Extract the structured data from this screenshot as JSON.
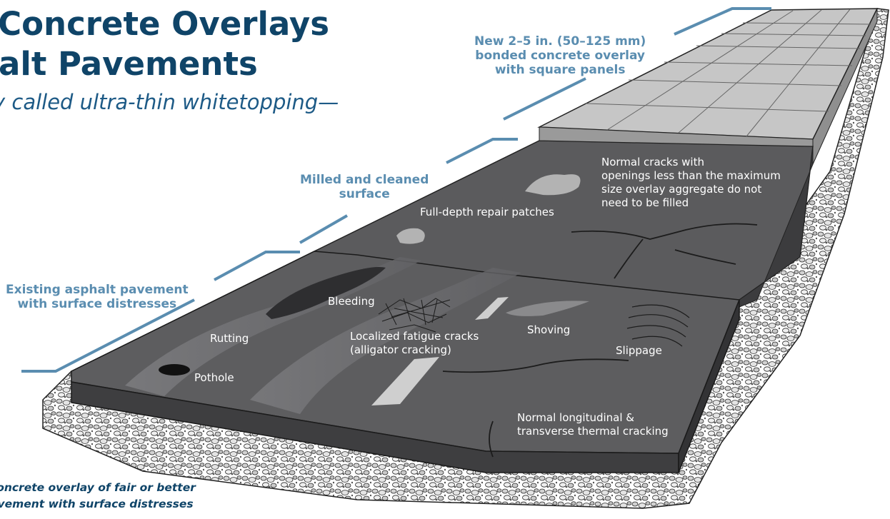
{
  "title_lines": [
    "l Concrete Overlays",
    "halt Pavements"
  ],
  "subtitle": "y called ultra-thin whitetopping—",
  "callouts": {
    "new_overlay": [
      "New 2–5 in. (50–125 mm)",
      "bonded concrete overlay",
      "with square panels"
    ],
    "milled": [
      "Milled and cleaned",
      "surface"
    ],
    "existing": [
      "Existing asphalt pavement",
      "with surface distresses"
    ]
  },
  "labels": {
    "full_depth": "Full-depth repair patches",
    "normal_cracks": [
      "Normal cracks with",
      "openings less than the maximum",
      "size overlay aggregate do not",
      "need to be filled"
    ],
    "bleeding": "Bleeding",
    "rutting": "Rutting",
    "pothole": "Pothole",
    "fatigue": [
      "Localized fatigue cracks",
      "(alligator cracking)"
    ],
    "shoving": "Shoving",
    "slippage": "Slippage",
    "thermal": [
      "Normal longitudinal &",
      "transverse thermal cracking"
    ]
  },
  "caption_lines": [
    "concrete overlay of fair or better",
    "avement with surface distresses"
  ],
  "colors": {
    "title": "#0f4468",
    "callout": "#5a8db0",
    "asphalt": "#5b5b5d",
    "concrete": "#c6c6c6"
  }
}
